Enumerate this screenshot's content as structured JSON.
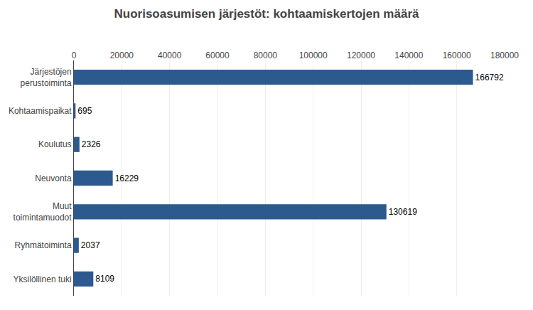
{
  "chart_data": {
    "type": "bar",
    "orientation": "horizontal",
    "title": "Nuorisoasumisen järjestöt: kohtaamiskertojen määrä",
    "categories": [
      "Järjestöjen\nperustoiminta",
      "Kohtaamispaikat",
      "Koulutus",
      "Neuvonta",
      "Muut\ntoimintamuodot",
      "Ryhmätoiminta",
      "Yksilöllinen tuki"
    ],
    "values": [
      166792,
      695,
      2326,
      16229,
      130619,
      2037,
      8109
    ],
    "color": "#2d5a8e",
    "xlim": [
      0,
      180000
    ],
    "xticks": [
      0,
      20000,
      40000,
      60000,
      80000,
      100000,
      120000,
      140000,
      160000,
      180000
    ],
    "grid": true,
    "data_labels": true
  }
}
